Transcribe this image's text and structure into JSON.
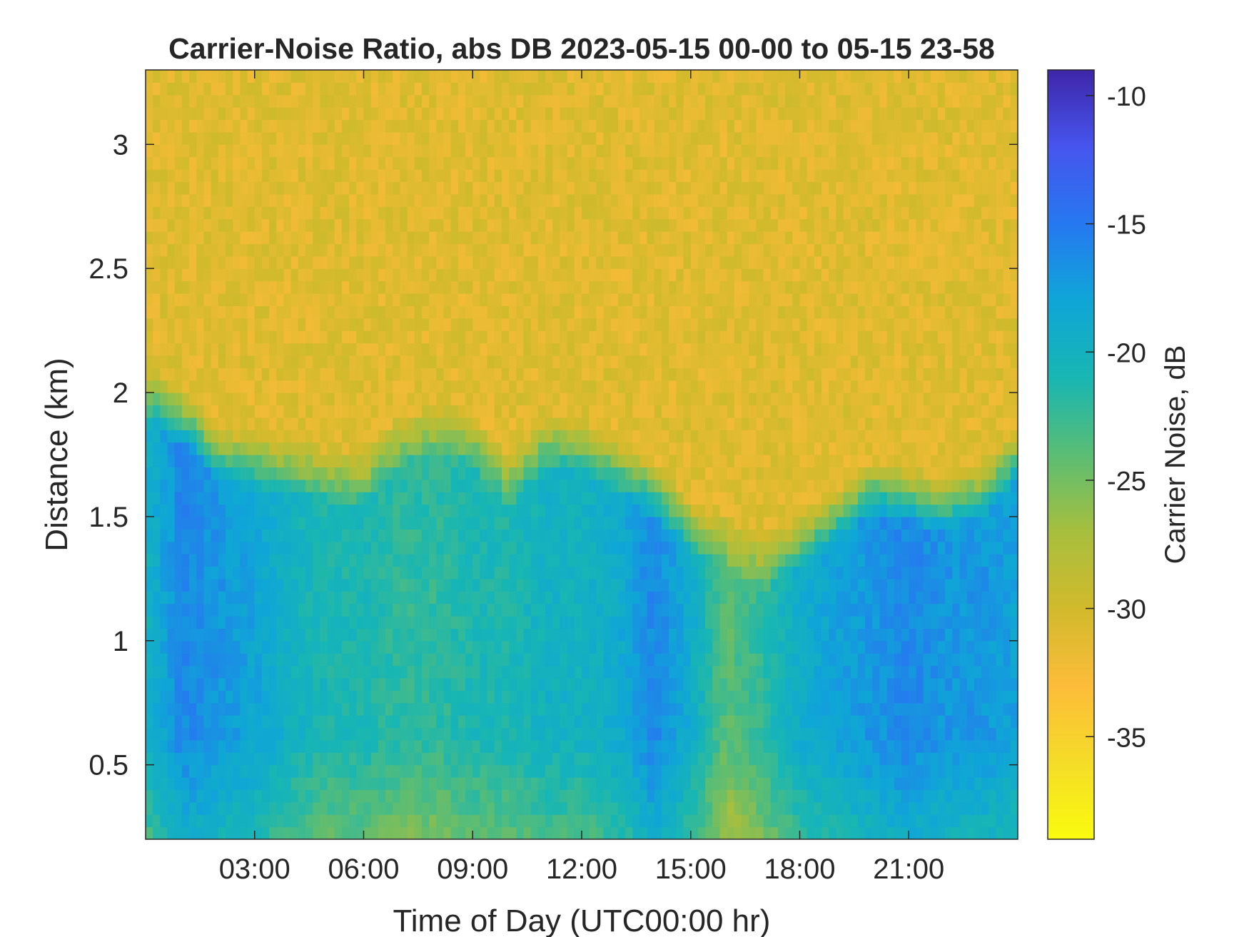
{
  "chart_data": {
    "type": "heatmap",
    "title": "Carrier-Noise Ratio, abs DB 2023-05-15 00-00 to 05-15 23-58",
    "xlabel": "Time of Day (UTC00:00 hr)",
    "ylabel": "Distance (km)",
    "xlim_hours": [
      0,
      24
    ],
    "ylim": [
      0.2,
      3.3
    ],
    "x_ticks": [
      {
        "value": 3,
        "label": "03:00"
      },
      {
        "value": 6,
        "label": "06:00"
      },
      {
        "value": 9,
        "label": "09:00"
      },
      {
        "value": 12,
        "label": "12:00"
      },
      {
        "value": 15,
        "label": "15:00"
      },
      {
        "value": 18,
        "label": "18:00"
      },
      {
        "value": 21,
        "label": "21:00"
      }
    ],
    "y_ticks": [
      {
        "value": 0.5,
        "label": "0.5"
      },
      {
        "value": 1,
        "label": "1"
      },
      {
        "value": 1.5,
        "label": "1.5"
      },
      {
        "value": 2,
        "label": "2"
      },
      {
        "value": 2.5,
        "label": "2.5"
      },
      {
        "value": 3,
        "label": "3"
      }
    ],
    "colorbar": {
      "label": "Carrier Noise, dB",
      "clim": [
        -39,
        -9
      ],
      "colormap": "parula (reversed: yellow at low, dark blue at high)",
      "ticks": [
        {
          "value": -10,
          "label": "-10"
        },
        {
          "value": -15,
          "label": "-15"
        },
        {
          "value": -20,
          "label": "-20"
        },
        {
          "value": -25,
          "label": "-25"
        },
        {
          "value": -30,
          "label": "-30"
        },
        {
          "value": -35,
          "label": "-35"
        }
      ]
    },
    "grid": false,
    "field_summary": {
      "boundary_km": [
        [
          0,
          2.0
        ],
        [
          1,
          1.9
        ],
        [
          2,
          1.75
        ],
        [
          3,
          1.72
        ],
        [
          4,
          1.7
        ],
        [
          5,
          1.67
        ],
        [
          6,
          1.65
        ],
        [
          7,
          1.8
        ],
        [
          8,
          1.85
        ],
        [
          9,
          1.8
        ],
        [
          10,
          1.65
        ],
        [
          11,
          1.8
        ],
        [
          12,
          1.78
        ],
        [
          13,
          1.7
        ],
        [
          14,
          1.6
        ],
        [
          15,
          1.45
        ],
        [
          16,
          1.4
        ],
        [
          17,
          1.3
        ],
        [
          18,
          1.4
        ],
        [
          19,
          1.5
        ],
        [
          20,
          1.62
        ],
        [
          21,
          1.58
        ],
        [
          22,
          1.55
        ],
        [
          23,
          1.6
        ],
        [
          24,
          1.75
        ]
      ],
      "upper_layer_db": -31,
      "lower_layer_db_by_hour": [
        [
          0,
          -20
        ],
        [
          1,
          -16
        ],
        [
          2,
          -17
        ],
        [
          3,
          -18
        ],
        [
          4,
          -20
        ],
        [
          5,
          -21
        ],
        [
          6,
          -21
        ],
        [
          7,
          -22
        ],
        [
          8,
          -22
        ],
        [
          9,
          -21
        ],
        [
          10,
          -21
        ],
        [
          11,
          -20
        ],
        [
          12,
          -20
        ],
        [
          13,
          -19
        ],
        [
          14,
          -16
        ],
        [
          15,
          -19
        ],
        [
          16,
          -24
        ],
        [
          17,
          -22
        ],
        [
          18,
          -19
        ],
        [
          19,
          -18
        ],
        [
          20,
          -17
        ],
        [
          21,
          -16
        ],
        [
          22,
          -17
        ],
        [
          23,
          -17
        ],
        [
          24,
          -18
        ]
      ]
    },
    "colors": {
      "axis": "#262626",
      "background": "#ffffff"
    }
  }
}
